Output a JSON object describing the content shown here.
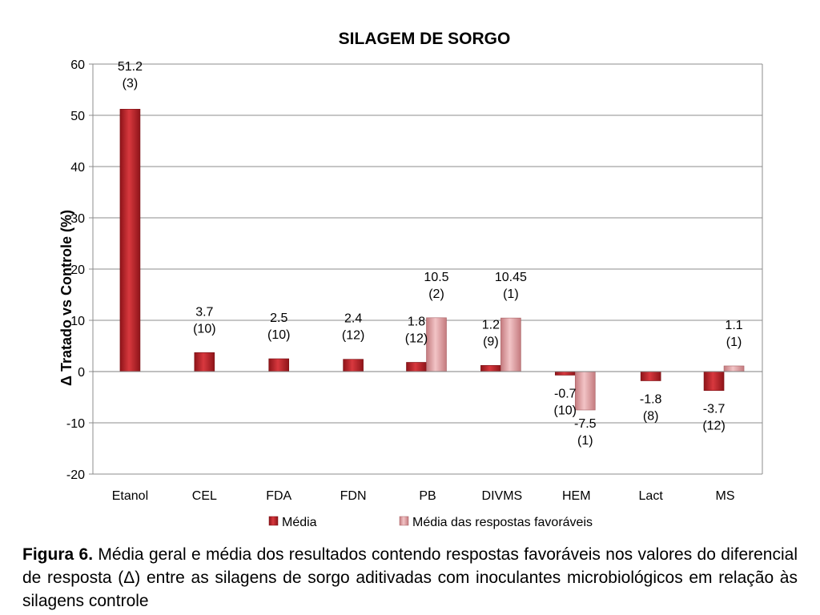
{
  "chart_data": {
    "type": "bar",
    "title": "SILAGEM DE SORGO",
    "ylabel": "Δ Tratado vs Controle (%)",
    "xlabel": "",
    "ylim": [
      -20,
      60
    ],
    "yticks": [
      -20,
      -10,
      0,
      10,
      20,
      30,
      40,
      50,
      60
    ],
    "grid": true,
    "legend": "bottom",
    "categories": [
      "Etanol",
      "CEL",
      "FDA",
      "FDN",
      "PB",
      "DIVMS",
      "HEM",
      "Lact",
      "MS"
    ],
    "series": [
      {
        "name": "Média",
        "color": "#c0272d",
        "values": [
          51.2,
          3.7,
          2.5,
          2.4,
          1.8,
          1.2,
          -0.7,
          -1.8,
          -3.7
        ],
        "labels": [
          "51.2",
          "3.7",
          "2.5",
          "2.4",
          "1.8",
          "1.2",
          "-0.7",
          "-1.8",
          "-3.7"
        ],
        "counts": [
          "(3)",
          "(10)",
          "(10)",
          "(12)",
          "(12)",
          "(9)",
          "(10)",
          "(8)",
          "(12)"
        ]
      },
      {
        "name": "Média das respostas favoráveis",
        "color": "#e3a4a7",
        "values": [
          null,
          null,
          null,
          null,
          10.5,
          10.45,
          -7.5,
          null,
          1.1
        ],
        "labels": [
          null,
          null,
          null,
          null,
          "10.5",
          "10.45",
          "-7.5",
          null,
          "1.1"
        ],
        "counts": [
          null,
          null,
          null,
          null,
          "(2)",
          "(1)",
          "(1)",
          null,
          "(1)"
        ]
      }
    ]
  },
  "caption": {
    "label": "Figura 6.",
    "text": " Média geral e média dos resultados contendo respostas favoráveis nos valores do diferencial de resposta (Δ) entre as silagens de sorgo aditivadas com inoculantes microbiológicos em relação às silagens controle"
  }
}
